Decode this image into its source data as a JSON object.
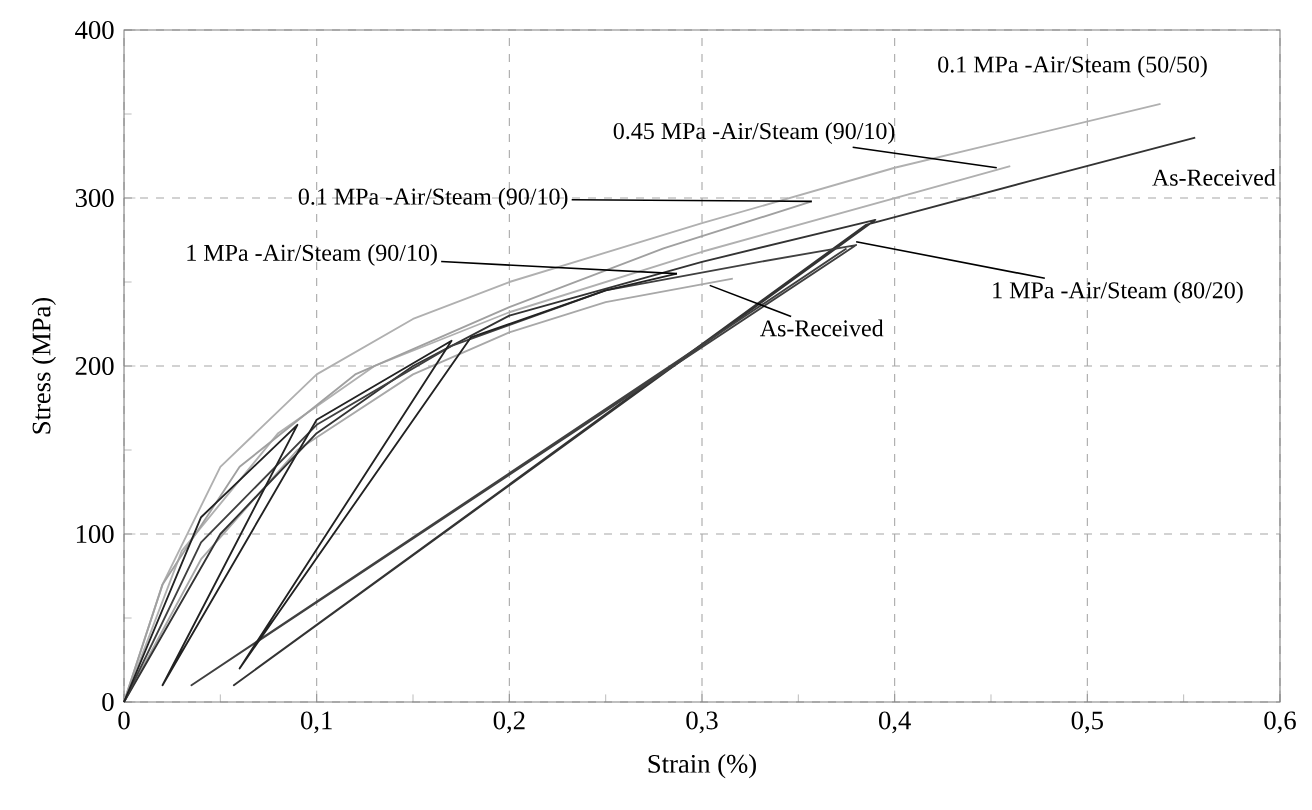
{
  "chart_data": {
    "type": "line",
    "xlabel": "Strain (%)",
    "ylabel": "Stress (MPa)",
    "xlim": [
      0,
      0.6
    ],
    "ylim": [
      0,
      400
    ],
    "xticks": [
      {
        "value": 0,
        "label": "0"
      },
      {
        "value": 0.1,
        "label": "0,1"
      },
      {
        "value": 0.2,
        "label": "0,2"
      },
      {
        "value": 0.3,
        "label": "0,3"
      },
      {
        "value": 0.4,
        "label": "0,4"
      },
      {
        "value": 0.5,
        "label": "0,5"
      },
      {
        "value": 0.6,
        "label": "0,6"
      }
    ],
    "yticks": [
      0,
      100,
      200,
      300,
      400
    ],
    "grid": true,
    "marker": "none",
    "line_style": "solid",
    "series": [
      {
        "color": "#b0b0b0",
        "x": [
          0,
          0.02,
          0.05,
          0.1,
          0.15,
          0.2,
          0.3,
          0.4,
          0.538
        ],
        "values": [
          0,
          70,
          140,
          195,
          228,
          250,
          285,
          318,
          356
        ]
      },
      {
        "color": "#b0b0b0",
        "x": [
          0,
          0.03,
          0.08,
          0.13,
          0.2,
          0.3,
          0.46
        ],
        "values": [
          0,
          90,
          160,
          200,
          232,
          268,
          319
        ]
      },
      {
        "color": "#a0a0a0",
        "x": [
          0,
          0.02,
          0.06,
          0.12,
          0.2,
          0.28,
          0.357
        ],
        "values": [
          0,
          70,
          140,
          195,
          235,
          270,
          298
        ]
      },
      {
        "color": "#a8a8a8",
        "x": [
          0,
          0.04,
          0.09,
          0.15,
          0.2,
          0.25,
          0.316
        ],
        "values": [
          0,
          85,
          150,
          195,
          220,
          238,
          252
        ]
      },
      {
        "color": "#333333",
        "x": [
          0,
          0.05,
          0.1,
          0.15,
          0.2,
          0.3,
          0.39,
          0.057,
          0.385,
          0.47,
          0.556
        ],
        "values": [
          0,
          100,
          160,
          200,
          230,
          262,
          287,
          10,
          284,
          310,
          336
        ]
      },
      {
        "color": "#404040",
        "x": [
          0,
          0.04,
          0.1,
          0.17,
          0.25,
          0.33,
          0.38,
          0.035,
          0.375
        ],
        "values": [
          0,
          95,
          165,
          212,
          245,
          262,
          272,
          10,
          270
        ]
      },
      {
        "color": "#222222",
        "x": [
          0,
          0.04,
          0.09,
          0.02,
          0.1,
          0.17,
          0.06,
          0.18,
          0.25,
          0.287
        ],
        "values": [
          0,
          110,
          165,
          10,
          168,
          215,
          20,
          217,
          245,
          255
        ]
      }
    ],
    "annotations": [
      {
        "text": "0.1 MPa -Air/Steam (50/50)",
        "x": 0.538,
        "y": 356
      },
      {
        "text": "0.45 MPa -Air/Steam (90/10)",
        "x": 0.453,
        "y": 318
      },
      {
        "text": "0.1 MPa -Air/Steam (90/10)",
        "x": 0.357,
        "y": 298
      },
      {
        "text": "1 MPa -Air/Steam (90/10)",
        "x": 0.287,
        "y": 255
      },
      {
        "text": "As-Received",
        "x": 0.304,
        "y": 248
      },
      {
        "text": "1 MPa -Air/Steam (80/20)",
        "x": 0.38,
        "y": 274
      },
      {
        "text": "As-Received",
        "x": 0.52,
        "y": 325
      }
    ]
  }
}
